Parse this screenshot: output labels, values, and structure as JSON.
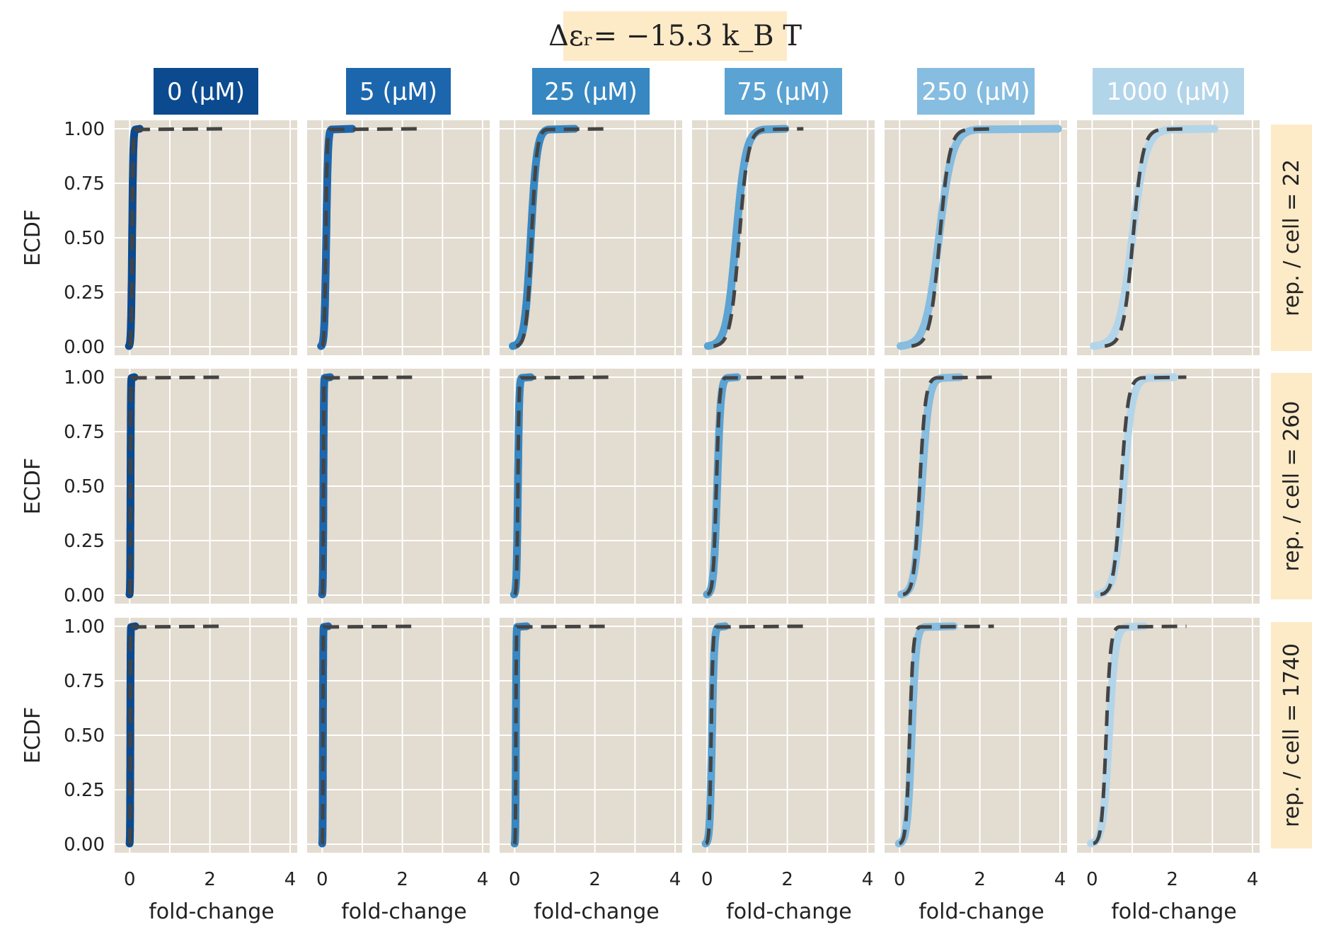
{
  "title": "Δεᵣ= −15.3 k_B T",
  "colors": {
    "panel_background": "#e3dcd0",
    "header_background": "#fdebc8",
    "prediction_line": "#444444",
    "concentrations": [
      "#0b4a8f",
      "#1c66ae",
      "#3687c2",
      "#5aa3d3",
      "#86bde0",
      "#b3d5ea"
    ]
  },
  "col_labels": [
    "0 (μM)",
    "5 (μM)",
    "25 (μM)",
    "75 (μM)",
    "250 (μM)",
    "1000 (μM)"
  ],
  "row_labels": [
    "rep. / cell = 22",
    "rep. / cell = 260",
    "rep. / cell = 1740"
  ],
  "ylabel": "ECDF",
  "xlabel": "fold-change",
  "x_ticks": [
    0,
    2,
    4
  ],
  "y_ticks": [
    "0.00",
    "0.25",
    "0.50",
    "0.75",
    "1.00"
  ],
  "chart_data": {
    "type": "line",
    "title": "Δεᵣ= −15.3 k_B T",
    "xlabel": "fold-change",
    "ylabel": "ECDF",
    "xlim": [
      -0.2,
      4
    ],
    "ylim": [
      0,
      1
    ],
    "grid": true,
    "inducer_concentrations_uM": [
      0,
      5,
      25,
      75,
      250,
      1000
    ],
    "repressors_per_cell": [
      22,
      260,
      1740
    ],
    "series_shape": "ECDF sigmoid (empirical, thick colored) vs. prediction (dashed dark); values give median fold-change, spread, max fold-change",
    "panels": [
      {
        "rep": 22,
        "conc": 0,
        "data": {
          "median": 0.06,
          "spread": 0.025,
          "xmax": 0.25
        },
        "prediction": {
          "median": 0.06,
          "spread": 0.02,
          "xmax": 2.35
        }
      },
      {
        "rep": 22,
        "conc": 5,
        "data": {
          "median": 0.1,
          "spread": 0.04,
          "xmax": 0.75
        },
        "prediction": {
          "median": 0.09,
          "spread": 0.03,
          "xmax": 2.4
        }
      },
      {
        "rep": 22,
        "conc": 25,
        "data": {
          "median": 0.4,
          "spread": 0.14,
          "xmax": 1.5
        },
        "prediction": {
          "median": 0.42,
          "spread": 0.12,
          "xmax": 2.4
        }
      },
      {
        "rep": 22,
        "conc": 75,
        "data": {
          "median": 0.72,
          "spread": 0.22,
          "xmax": 1.95
        },
        "prediction": {
          "median": 0.8,
          "spread": 0.2,
          "xmax": 2.4
        }
      },
      {
        "rep": 22,
        "conc": 250,
        "data": {
          "median": 0.98,
          "spread": 0.3,
          "xmax": 3.95
        },
        "prediction": {
          "median": 1.0,
          "spread": 0.22,
          "xmax": 2.4
        }
      },
      {
        "rep": 22,
        "conc": 1000,
        "data": {
          "median": 1.0,
          "spread": 0.3,
          "xmax": 3.05
        },
        "prediction": {
          "median": 1.02,
          "spread": 0.22,
          "xmax": 2.4
        }
      },
      {
        "rep": 260,
        "conc": 0,
        "data": {
          "median": 0.02,
          "spread": 0.008,
          "xmax": 0.12
        },
        "prediction": {
          "median": 0.02,
          "spread": 0.006,
          "xmax": 2.4
        }
      },
      {
        "rep": 260,
        "conc": 5,
        "data": {
          "median": 0.03,
          "spread": 0.01,
          "xmax": 0.2
        },
        "prediction": {
          "median": 0.03,
          "spread": 0.008,
          "xmax": 2.4
        }
      },
      {
        "rep": 260,
        "conc": 25,
        "data": {
          "median": 0.08,
          "spread": 0.03,
          "xmax": 0.4
        },
        "prediction": {
          "median": 0.08,
          "spread": 0.025,
          "xmax": 2.4
        }
      },
      {
        "rep": 260,
        "conc": 75,
        "data": {
          "median": 0.25,
          "spread": 0.08,
          "xmax": 0.75
        },
        "prediction": {
          "median": 0.23,
          "spread": 0.07,
          "xmax": 2.4
        }
      },
      {
        "rep": 260,
        "conc": 250,
        "data": {
          "median": 0.55,
          "spread": 0.16,
          "xmax": 1.5
        },
        "prediction": {
          "median": 0.5,
          "spread": 0.13,
          "xmax": 2.4
        }
      },
      {
        "rep": 260,
        "conc": 1000,
        "data": {
          "median": 0.78,
          "spread": 0.2,
          "xmax": 2.05
        },
        "prediction": {
          "median": 0.72,
          "spread": 0.16,
          "xmax": 2.35
        }
      },
      {
        "rep": 1740,
        "conc": 0,
        "data": {
          "median": 0.015,
          "spread": 0.006,
          "xmax": 0.14
        },
        "prediction": {
          "median": 0.015,
          "spread": 0.005,
          "xmax": 2.35
        }
      },
      {
        "rep": 1740,
        "conc": 5,
        "data": {
          "median": 0.018,
          "spread": 0.006,
          "xmax": 0.15
        },
        "prediction": {
          "median": 0.018,
          "spread": 0.005,
          "xmax": 2.4
        }
      },
      {
        "rep": 1740,
        "conc": 25,
        "data": {
          "median": 0.03,
          "spread": 0.01,
          "xmax": 0.3
        },
        "prediction": {
          "median": 0.03,
          "spread": 0.01,
          "xmax": 2.4
        }
      },
      {
        "rep": 1740,
        "conc": 75,
        "data": {
          "median": 0.12,
          "spread": 0.05,
          "xmax": 0.45
        },
        "prediction": {
          "median": 0.1,
          "spread": 0.04,
          "xmax": 2.4
        }
      },
      {
        "rep": 1740,
        "conc": 250,
        "data": {
          "median": 0.3,
          "spread": 0.1,
          "xmax": 1.35
        },
        "prediction": {
          "median": 0.25,
          "spread": 0.08,
          "xmax": 2.35
        }
      },
      {
        "rep": 1740,
        "conc": 1000,
        "data": {
          "median": 0.42,
          "spread": 0.14,
          "xmax": 1.3
        },
        "prediction": {
          "median": 0.35,
          "spread": 0.1,
          "xmax": 2.35
        }
      }
    ]
  }
}
